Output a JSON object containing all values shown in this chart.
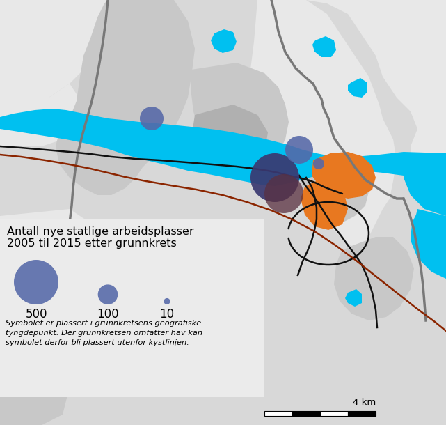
{
  "bg_color": "#d8d8d8",
  "water_color": "#00c0f0",
  "light_gray": "#e8e8e8",
  "medium_gray": "#c8c8c8",
  "dark_gray": "#a0a0a0",
  "road_black": "#111111",
  "road_red": "#8b2500",
  "road_gray": "#787878",
  "orange_zone": "#e87820",
  "bubble_blue": "#5568a8",
  "bubble_dark": "#3a3870",
  "bubble_maroon": "#5a3040",
  "legend_bg": "#e0e0e0",
  "title_line1": "Antall nye statlige arbeidsplasser",
  "title_line2": "2005 til 2015 etter grunnkrets",
  "note_line1": "Symbolet er plassert i grunnkretsens geografiske",
  "note_line2": "tyngdepunkt. Der grunnkretsen omfatter hav kan",
  "note_line3": "symbolet derfor bli plassert utenfor kystlinjen.",
  "scale_label": "4 km",
  "figsize": [
    6.41,
    6.1
  ],
  "dpi": 100
}
